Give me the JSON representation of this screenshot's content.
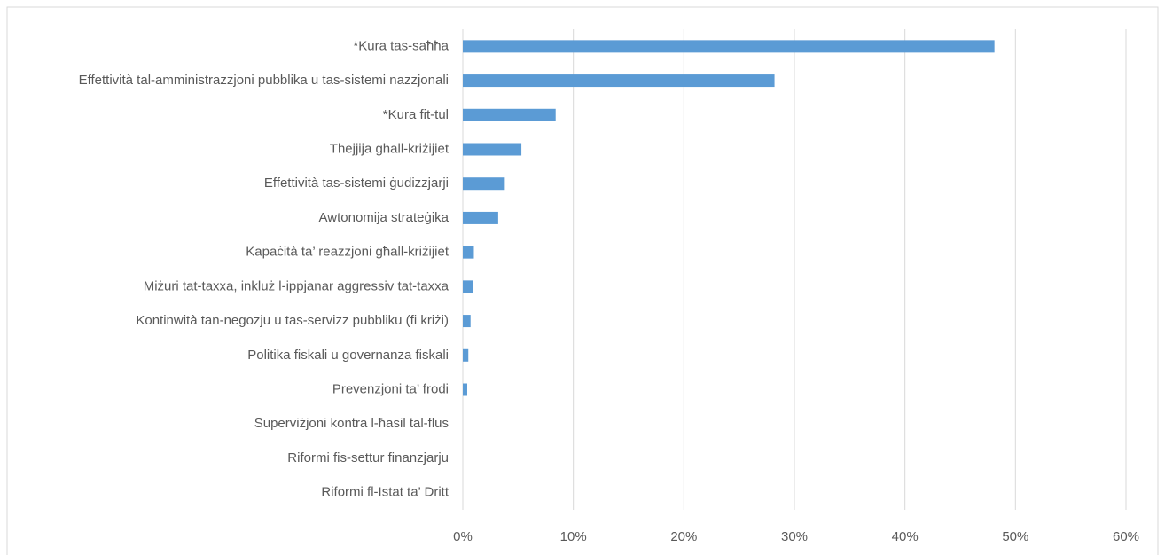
{
  "chart_data": {
    "type": "bar",
    "orientation": "horizontal",
    "categories": [
      "*Kura tas-saħħa",
      "Effettività tal-amministrazzjoni pubblika u tas-sistemi nazzjonali",
      "*Kura fit-tul",
      "Tħejjija għall-kriżijiet",
      "Effettività tas-sistemi ġudizzjarji",
      "Awtonomija strateġika",
      "Kapaċità ta’ reazzjoni għall-kriżijiet",
      "Miżuri tat-taxxa, inkluż l-ippjanar aggressiv tat-taxxa",
      "Kontinwità tan-negozju u tas-servizz pubbliku (fi kriżi)",
      "Politika fiskali u governanza fiskali",
      "Prevenzjoni ta’ frodi",
      "Superviżjoni kontra l-ħasil tal-flus",
      "Riformi fis-settur finanzjarju",
      "Riformi fl-Istat ta’ Dritt"
    ],
    "values": [
      48.1,
      28.2,
      8.4,
      5.3,
      3.8,
      3.2,
      1.0,
      0.9,
      0.7,
      0.5,
      0.4,
      0,
      0,
      0
    ],
    "color": "#5b9bd5",
    "xlim": [
      0,
      60
    ],
    "xticks": [
      {
        "value": 0,
        "label": "0%"
      },
      {
        "value": 10,
        "label": "10%"
      },
      {
        "value": 20,
        "label": "20%"
      },
      {
        "value": 30,
        "label": "30%"
      },
      {
        "value": 40,
        "label": "40%"
      },
      {
        "value": 50,
        "label": "50%"
      },
      {
        "value": 60,
        "label": "60%"
      }
    ],
    "grid": true
  }
}
